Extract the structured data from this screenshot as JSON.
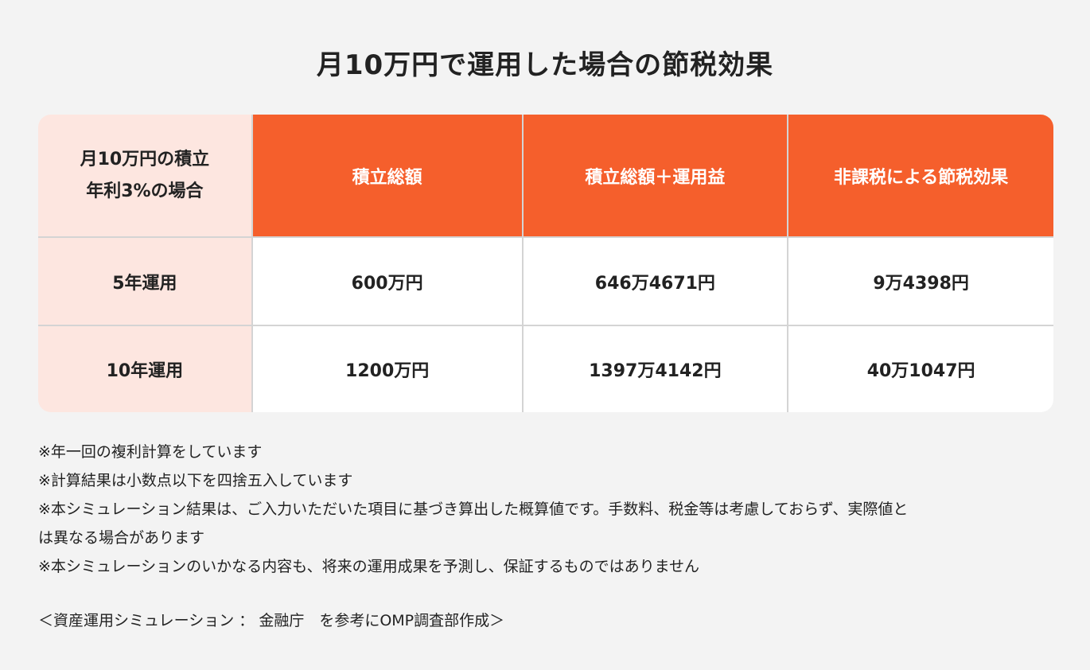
{
  "title": "月10万円で運用した場合の節税効果",
  "table": {
    "corner": [
      "月10万円の積立",
      "年利3%の場合"
    ],
    "headers": [
      "積立総額",
      "積立総額＋運用益",
      "非課税による節税効果"
    ],
    "rows": [
      {
        "label": "5年運用",
        "values": [
          "600万円",
          "646万4671円",
          "9万4398円"
        ]
      },
      {
        "label": "10年運用",
        "values": [
          "1200万円",
          "1397万4142円",
          "40万1047円"
        ]
      }
    ]
  },
  "colors": {
    "header_bg": "#f55f2c",
    "label_bg": "#fde6e0",
    "page_bg": "#f3f3f3"
  },
  "notes": [
    "※年一回の複利計算をしています",
    "※計算結果は小数点以下を四捨五入しています",
    "※本シミュレーション結果は、ご入力いただいた項目に基づき算出した概算値です。手数料、税金等は考慮しておらず、実際値と",
    "は異なる場合があります",
    "※本シミュレーションのいかなる内容も、将来の運用成果を予測し、保証するものではありません"
  ],
  "source": "＜資産運用シミュレーション ： 金融庁　を参考にOMP調査部作成＞"
}
